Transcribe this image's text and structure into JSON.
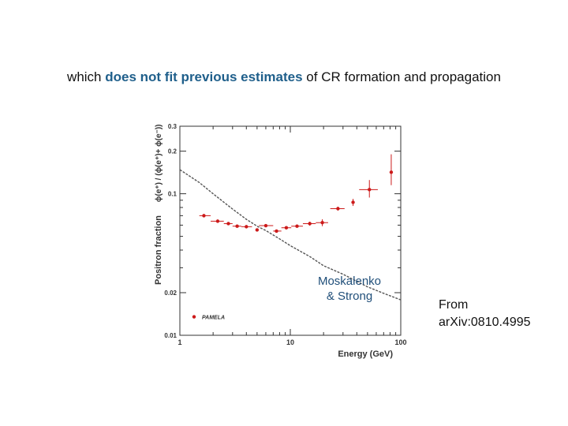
{
  "headline": {
    "before": "which ",
    "highlight": "does not fit previous estimates",
    "after": " of CR formation and propagation"
  },
  "chart_data": {
    "type": "scatter",
    "title": "",
    "xlabel": "Energy (GeV)",
    "ylabel": "Positron fraction",
    "ylabel_top": "ϕ(e⁺) / (ϕ(e⁺)+ ϕ(e⁻))",
    "xscale": "log",
    "yscale": "log",
    "xlim": [
      1,
      100
    ],
    "ylim": [
      0.01,
      0.3
    ],
    "x_ticks": [
      {
        "value": 1,
        "label": "1"
      },
      {
        "value": 10,
        "label": "10"
      },
      {
        "value": 100,
        "label": "100"
      }
    ],
    "y_ticks": [
      {
        "value": 0.3,
        "label": "0.3"
      },
      {
        "value": 0.2,
        "label": "0.2"
      },
      {
        "value": 0.1,
        "label": "0.1"
      },
      {
        "value": 0.02,
        "label": "0.02"
      },
      {
        "value": 0.01,
        "label": "0.01"
      }
    ],
    "series": [
      {
        "name": "PAMELA",
        "color": "#cc1a1a",
        "points": [
          {
            "x": 1.65,
            "y": 0.07,
            "xlo": 1.5,
            "xhi": 1.9
          },
          {
            "x": 2.2,
            "y": 0.064,
            "xlo": 1.9,
            "xhi": 2.5
          },
          {
            "x": 2.75,
            "y": 0.0615,
            "xlo": 2.5,
            "xhi": 3.0
          },
          {
            "x": 3.3,
            "y": 0.059,
            "xlo": 3.0,
            "xhi": 3.6
          },
          {
            "x": 4.0,
            "y": 0.0585,
            "xlo": 3.6,
            "xhi": 4.5
          },
          {
            "x": 5.0,
            "y": 0.0555
          },
          {
            "x": 6.0,
            "y": 0.0595,
            "xlo": 5.2,
            "xhi": 7.0
          },
          {
            "x": 7.5,
            "y": 0.0545,
            "xlo": 7.0,
            "xhi": 8.3
          },
          {
            "x": 9.2,
            "y": 0.0575,
            "xlo": 8.3,
            "xhi": 10.2
          },
          {
            "x": 11.5,
            "y": 0.059,
            "xlo": 10.2,
            "xhi": 13.0
          },
          {
            "x": 15.0,
            "y": 0.0615,
            "xlo": 13.0,
            "xhi": 17.0,
            "ylo": 0.0595,
            "yhi": 0.0635
          },
          {
            "x": 19.5,
            "y": 0.0625,
            "xlo": 17.0,
            "xhi": 22.0,
            "ylo": 0.059,
            "yhi": 0.066
          },
          {
            "x": 27.0,
            "y": 0.0785,
            "xlo": 23.0,
            "xhi": 31.0,
            "ylo": 0.076,
            "yhi": 0.081
          },
          {
            "x": 37.0,
            "y": 0.087,
            "ylo": 0.082,
            "yhi": 0.092
          },
          {
            "x": 52.0,
            "y": 0.107,
            "xlo": 42.0,
            "xhi": 62.0,
            "ylo": 0.094,
            "yhi": 0.125
          },
          {
            "x": 82.0,
            "y": 0.142,
            "ylo": 0.115,
            "yhi": 0.19
          }
        ]
      },
      {
        "name": "Moskalenko & Strong",
        "color": "#555555",
        "line": [
          {
            "x": 1.0,
            "y": 0.148
          },
          {
            "x": 1.5,
            "y": 0.12
          },
          {
            "x": 2.0,
            "y": 0.1
          },
          {
            "x": 3.0,
            "y": 0.078
          },
          {
            "x": 4.0,
            "y": 0.066
          },
          {
            "x": 5.0,
            "y": 0.059
          },
          {
            "x": 6.0,
            "y": 0.055
          },
          {
            "x": 8.0,
            "y": 0.048
          },
          {
            "x": 10.0,
            "y": 0.043
          },
          {
            "x": 15.0,
            "y": 0.036
          },
          {
            "x": 20.0,
            "y": 0.031
          },
          {
            "x": 30.0,
            "y": 0.027
          },
          {
            "x": 50.0,
            "y": 0.022
          },
          {
            "x": 70.0,
            "y": 0.0198
          },
          {
            "x": 100.0,
            "y": 0.0178
          }
        ]
      }
    ],
    "legend": {
      "label": "PAMELA",
      "placement": "bottom-left"
    },
    "annotation": {
      "line1": "Moskalenko",
      "line2": "& Strong"
    }
  },
  "source": {
    "line1": "From",
    "line2": "arXiv:0810.4995"
  }
}
